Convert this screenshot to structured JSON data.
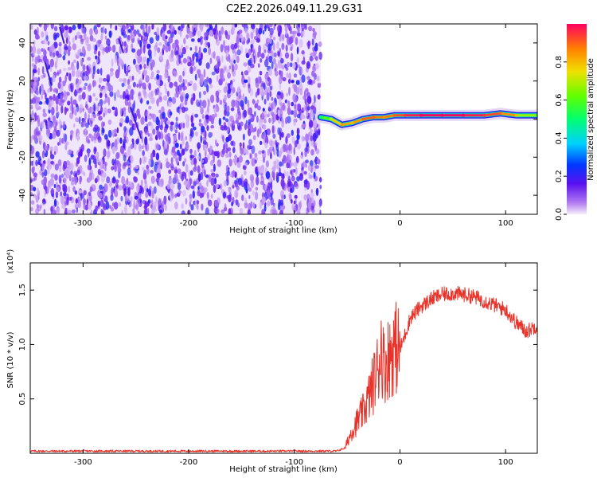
{
  "title": "C2E2.2026.049.11.29.G31",
  "chart_data": [
    {
      "type": "heatmap",
      "name": "spectrogram",
      "xlabel": "Height of straight line (km)",
      "ylabel": "Frequency (Hz)",
      "xlim": [
        -350,
        130
      ],
      "ylim": [
        -50,
        50
      ],
      "xticks": [
        "-300",
        "-200",
        "-100",
        "0",
        "100"
      ],
      "xtick_values": [
        -300,
        -200,
        -100,
        0,
        100
      ],
      "yticks": [
        "-40",
        "-20",
        "0",
        "20",
        "40"
      ],
      "ytick_values": [
        -40,
        -20,
        0,
        20,
        40
      ],
      "noise_region": {
        "x_from": -350,
        "x_to": -75,
        "y_from": -50,
        "y_to": 50
      },
      "signal_track": {
        "x": [
          -75,
          -65,
          -55,
          -45,
          -35,
          -25,
          -15,
          -5,
          5,
          20,
          40,
          60,
          80,
          95,
          110,
          130
        ],
        "y": [
          1,
          0,
          -3,
          -2,
          0,
          1,
          1,
          2,
          2,
          2,
          2,
          2,
          2,
          3,
          2,
          2
        ],
        "amplitude": [
          0.5,
          0.7,
          0.85,
          0.8,
          0.9,
          0.9,
          0.85,
          0.9,
          0.95,
          1.0,
          1.0,
          1.0,
          0.95,
          0.9,
          0.8,
          0.55
        ]
      },
      "colorbar": {
        "label": "Normalized spectral amplitude",
        "range": [
          0.0,
          1.0
        ],
        "ticks": [
          "0.0",
          "0.2",
          "0.4",
          "0.6",
          "0.8"
        ],
        "tick_values": [
          0.0,
          0.2,
          0.4,
          0.6,
          0.8
        ]
      }
    },
    {
      "type": "line",
      "name": "snr",
      "xlabel": "Height of straight line (km)",
      "ylabel": "SNR (10 * v/v)",
      "yscale_label": "(x10⁴)",
      "xlim": [
        -350,
        130
      ],
      "ylim": [
        0,
        1.75
      ],
      "xticks": [
        "-300",
        "-200",
        "-100",
        "0",
        "100"
      ],
      "xtick_values": [
        -300,
        -200,
        -100,
        0,
        100
      ],
      "yticks": [
        "0.5",
        "1.0",
        "1.5"
      ],
      "ytick_values": [
        0.5,
        1.0,
        1.5
      ],
      "color": "#e8332b",
      "series": {
        "x": [
          -350,
          -100,
          -60,
          -52,
          -50,
          -45,
          -40,
          -35,
          -30,
          -25,
          -20,
          -18,
          -15,
          -10,
          -5,
          0,
          5,
          10,
          20,
          30,
          40,
          50,
          60,
          70,
          80,
          90,
          100,
          110,
          120,
          130
        ],
        "y": [
          0.02,
          0.02,
          0.02,
          0.05,
          0.1,
          0.22,
          0.3,
          0.38,
          0.5,
          0.65,
          0.82,
          1.0,
          0.8,
          0.9,
          0.98,
          0.95,
          1.1,
          1.25,
          1.35,
          1.42,
          1.46,
          1.47,
          1.46,
          1.44,
          1.4,
          1.36,
          1.32,
          1.2,
          1.12,
          1.18
        ]
      }
    }
  ]
}
